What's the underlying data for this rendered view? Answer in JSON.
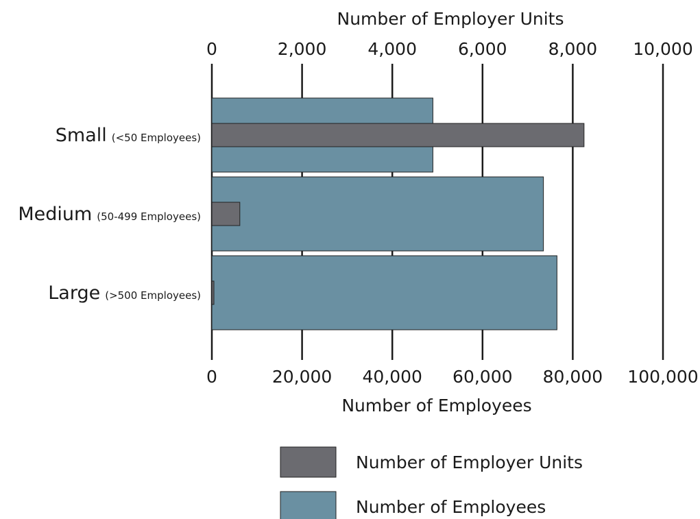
{
  "chart_data": {
    "type": "bar",
    "orientation": "horizontal",
    "categories": [
      {
        "main": "Small",
        "sub": "(<50 Employees)"
      },
      {
        "main": "Medium",
        "sub": "(50-499 Employees)"
      },
      {
        "main": "Large",
        "sub": "(>500 Employees)"
      }
    ],
    "series": [
      {
        "name": "Number of Employees",
        "axis": "bottom",
        "color": "#6a90a2",
        "values": [
          49000,
          73500,
          76500
        ]
      },
      {
        "name": "Number of Employer Units",
        "axis": "top",
        "color": "#6b6b70",
        "values": [
          8250,
          620,
          40
        ]
      }
    ],
    "top_axis": {
      "label": "Number of Employer Units",
      "range": [
        0,
        10000
      ],
      "ticks": [
        0,
        2000,
        4000,
        6000,
        8000,
        10000
      ],
      "tick_labels": [
        "0",
        "2,000",
        "4,000",
        "6,000",
        "8,000",
        "10,000"
      ]
    },
    "bottom_axis": {
      "label": "Number of Employees",
      "range": [
        0,
        100000
      ],
      "ticks": [
        0,
        20000,
        40000,
        60000,
        80000,
        100000
      ],
      "tick_labels": [
        "0",
        "20,000",
        "40,000",
        "60,000",
        "80,000",
        "100,000"
      ]
    },
    "grid": true,
    "legend": {
      "placement": "bottom",
      "entries": [
        {
          "label": "Number of Employer Units",
          "color": "#6b6b70"
        },
        {
          "label": "Number of Employees",
          "color": "#6a90a2"
        }
      ]
    }
  }
}
